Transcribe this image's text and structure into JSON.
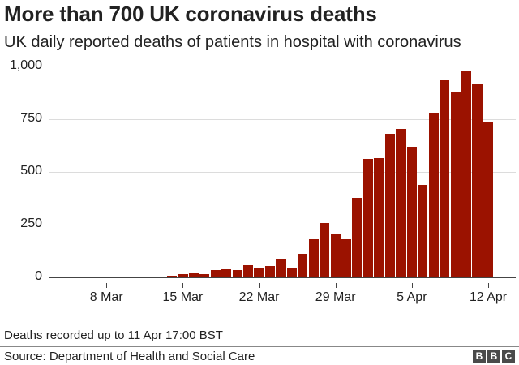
{
  "header": {
    "title": "More than 700 UK coronavirus deaths",
    "subtitle": "UK daily reported deaths of patients in hospital with coronavirus"
  },
  "footer": {
    "note": "Deaths recorded up to 11 Apr 17:00 BST",
    "source": "Source: Department of Health and Social Care",
    "logo": [
      "B",
      "B",
      "C"
    ]
  },
  "colors": {
    "bar": "#9b1200",
    "grid": "#dcdcdc",
    "axis": "#444444",
    "text": "#222222"
  },
  "chart_data": {
    "type": "bar",
    "title": "More than 700 UK coronavirus deaths",
    "subtitle": "UK daily reported deaths of patients in hospital with coronavirus",
    "xlabel": "",
    "ylabel": "",
    "ylim": [
      0,
      1000
    ],
    "yticks": [
      0,
      250,
      500,
      750,
      1000
    ],
    "ytick_labels": [
      "0",
      "250",
      "500",
      "750",
      "1,000"
    ],
    "xtick_labels": [
      "8 Mar",
      "15 Mar",
      "22 Mar",
      "29 Mar",
      "5 Apr",
      "12 Apr"
    ],
    "grid": true,
    "legend": null,
    "categories": [
      "14 Mar",
      "15 Mar",
      "16 Mar",
      "17 Mar",
      "18 Mar",
      "19 Mar",
      "20 Mar",
      "21 Mar",
      "22 Mar",
      "23 Mar",
      "24 Mar",
      "25 Mar",
      "26 Mar",
      "27 Mar",
      "28 Mar",
      "29 Mar",
      "30 Mar",
      "31 Mar",
      "1 Apr",
      "2 Apr",
      "3 Apr",
      "4 Apr",
      "5 Apr",
      "6 Apr",
      "7 Apr",
      "8 Apr",
      "9 Apr",
      "10 Apr",
      "11 Apr",
      "12 Apr"
    ],
    "values": [
      8,
      14,
      20,
      16,
      33,
      40,
      33,
      56,
      48,
      54,
      87,
      41,
      110,
      180,
      258,
      207,
      179,
      378,
      560,
      565,
      681,
      704,
      618,
      437,
      782,
      934,
      877,
      980,
      917,
      734
    ],
    "annotations": [
      "Deaths recorded up to 11 Apr 17:00 BST"
    ],
    "source": "Department of Health and Social Care"
  }
}
